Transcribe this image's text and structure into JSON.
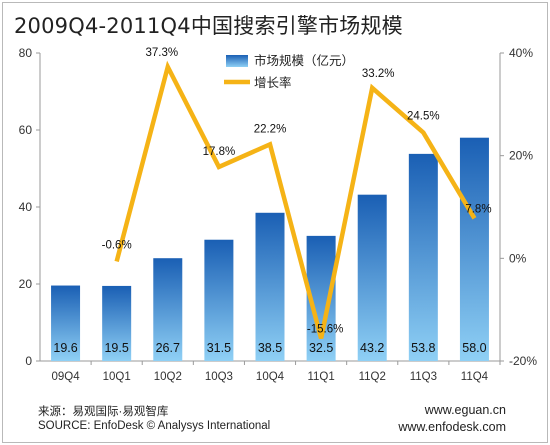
{
  "chart_data": {
    "type": "bar",
    "title": "2009Q4-2011Q4中国搜索引擎市场规模",
    "categories": [
      "09Q4",
      "10Q1",
      "10Q2",
      "10Q3",
      "10Q4",
      "11Q1",
      "11Q2",
      "11Q3",
      "11Q4"
    ],
    "series": [
      {
        "name": "市场规模（亿元）",
        "type": "bar",
        "axis": "left",
        "values": [
          19.6,
          19.5,
          26.7,
          31.5,
          38.5,
          32.5,
          43.2,
          53.8,
          58.0
        ],
        "labels": [
          "19.6",
          "19.5",
          "26.7",
          "31.5",
          "38.5",
          "32.5",
          "43.2",
          "53.8",
          "58.0"
        ]
      },
      {
        "name": "增长率",
        "type": "line",
        "axis": "right",
        "values": [
          null,
          -0.6,
          37.3,
          17.8,
          22.2,
          -15.6,
          33.2,
          24.5,
          7.8
        ],
        "labels": [
          "",
          "-0.6%",
          "37.3%",
          "17.8%",
          "22.2%",
          "-15.6%",
          "33.2%",
          "24.5%",
          "7.8%"
        ]
      }
    ],
    "y_left": {
      "range": [
        0,
        80
      ],
      "ticks": [
        "0",
        "20",
        "40",
        "60",
        "80"
      ]
    },
    "y_right": {
      "range": [
        -20,
        40
      ],
      "ticks": [
        "-20%",
        "0%",
        "20%",
        "40%"
      ]
    },
    "legend_placement": "top-center",
    "colors": {
      "bar_top": "#1a5fb4",
      "bar_bottom": "#8fd0f5",
      "line": "#f5b316",
      "axis": "#9a9a9a"
    }
  },
  "footer": {
    "source_cn": "来源：易观国际·易观智库",
    "source_en": "SOURCE: EnfoDesk © Analysys International",
    "url1": "www.eguan.cn",
    "url2": "www.enfodesk.com"
  }
}
